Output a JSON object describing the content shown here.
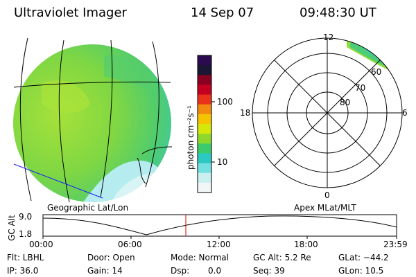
{
  "header": {
    "title": "Ultraviolet Imager",
    "date": "14 Sep 07",
    "time": "09:48:30 UT"
  },
  "colorbar": {
    "unit_label": "photon cm⁻²s⁻¹",
    "ticks": [
      "100",
      "10"
    ],
    "colors": [
      "#2b0b4e",
      "#1a1633",
      "#8a0020",
      "#c40020",
      "#e8321a",
      "#f08a10",
      "#f5c400",
      "#d6e80a",
      "#8ed82c",
      "#3ccb6a",
      "#2bc9c2",
      "#74dfe0",
      "#c9f0ee",
      "#f2f6f6"
    ]
  },
  "left_map": {
    "caption": "Geographic Lat/Lon",
    "fill_colors": [
      "#a6e13a",
      "#7fd743",
      "#52cc6b",
      "#3bc9b5",
      "#b5ecef"
    ]
  },
  "polar_map": {
    "caption": "Apex MLat/MLT",
    "mlt_labels": {
      "top": "12",
      "left": "18",
      "right": "6",
      "bottom": "0"
    },
    "mlat_labels": [
      "60",
      "70",
      "80"
    ]
  },
  "altitude_plot": {
    "ylabel": "GC Alt",
    "yticks": [
      "9.0",
      "1.8"
    ],
    "xticks": [
      "00:00",
      "06:00",
      "12:00",
      "18:00",
      "23:59"
    ],
    "marker_color": "#e00000"
  },
  "info": {
    "flt": "Flt: LBHL",
    "door": "Door: Open",
    "mode": "Mode: Normal",
    "gc_alt": "GC Alt: 5.2 Re",
    "glat": "GLat: −44.2",
    "ip": "IP: 36.0",
    "gain": "Gain: 14",
    "dsp_label": "Dsp:",
    "dsp_value": "0.0",
    "seq": "Seq: 39",
    "glon": "GLon:  10.5"
  }
}
